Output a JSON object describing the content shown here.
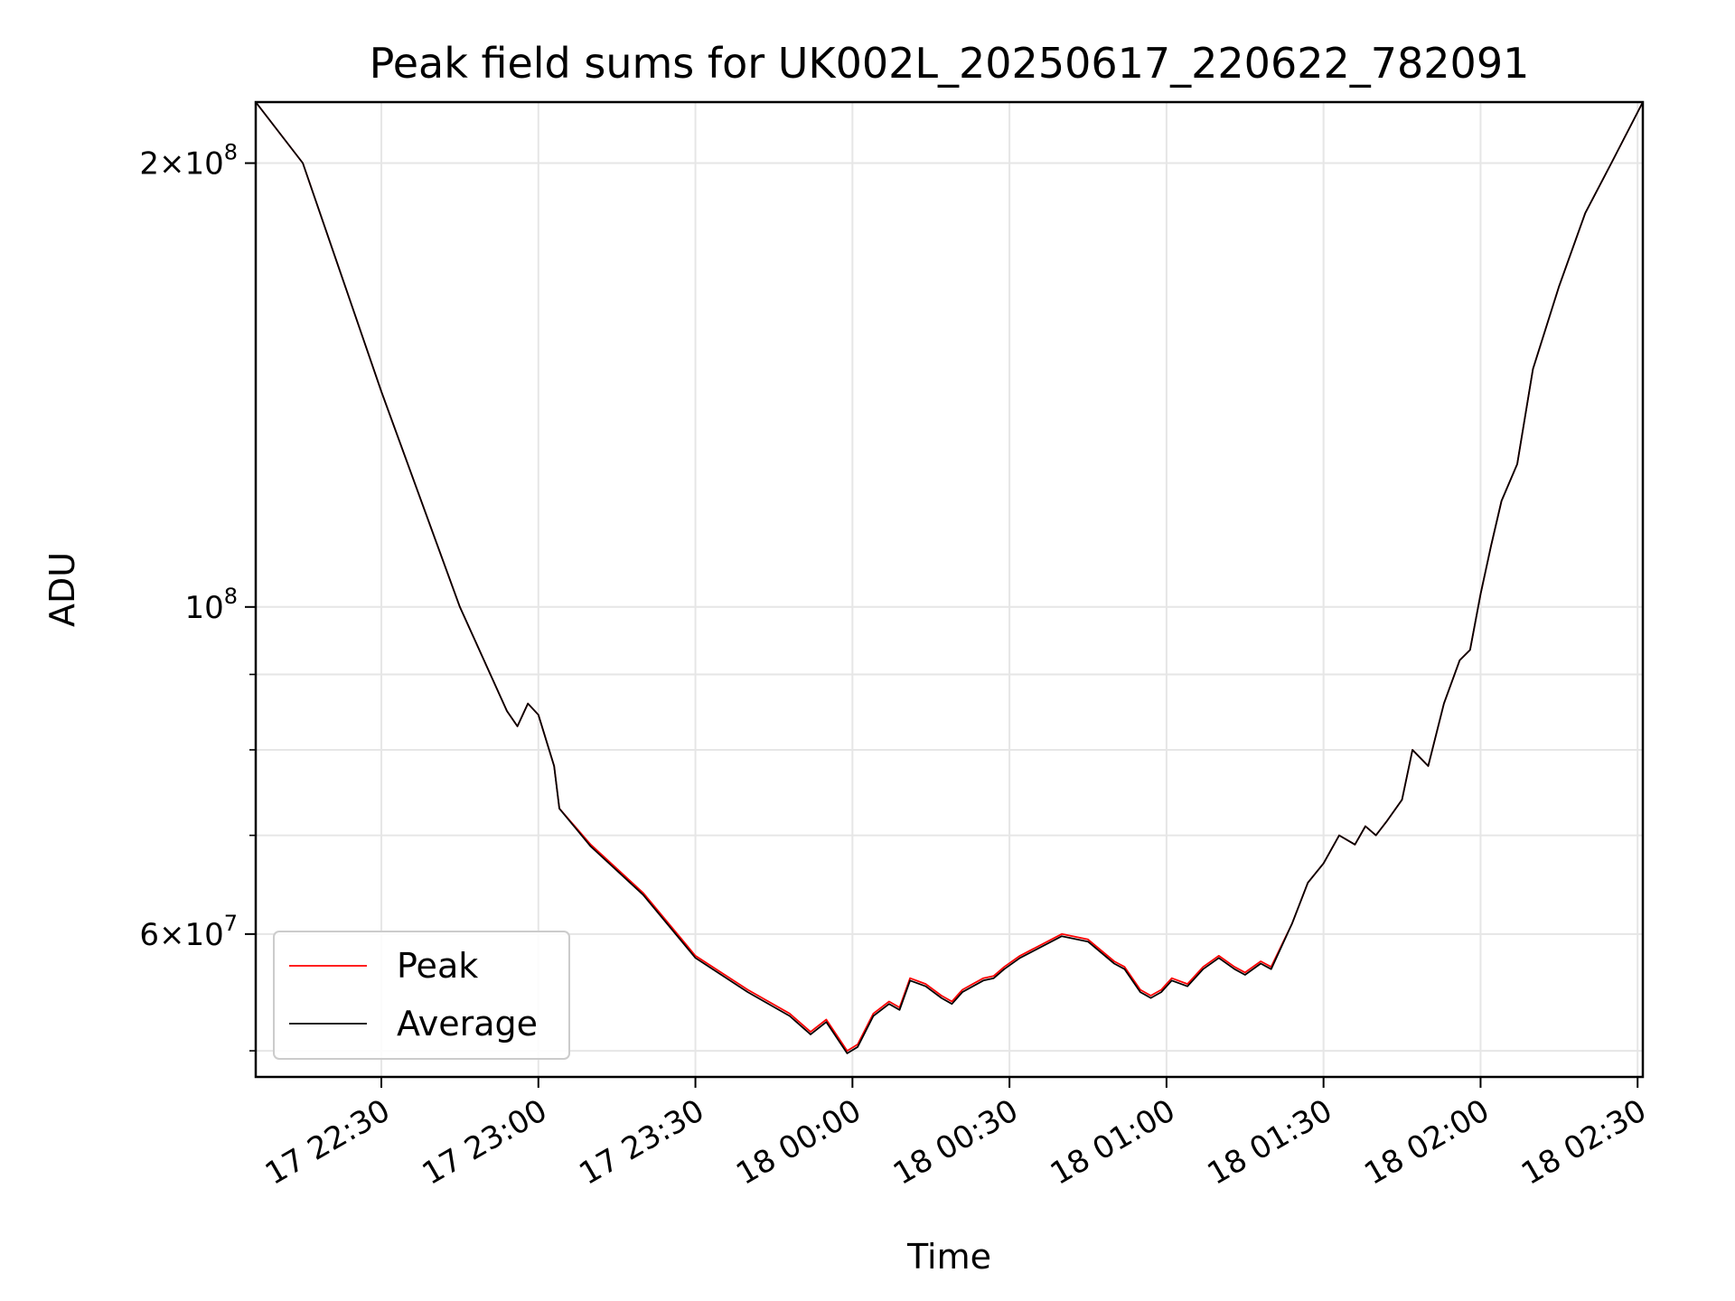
{
  "chart_data": {
    "type": "line",
    "title": "Peak field sums for UK002L_20250617_220622_782091",
    "xlabel": "Time",
    "ylabel": "ADU",
    "y_scale": "log",
    "ylim": [
      48000000,
      220000000
    ],
    "xlim": [
      "2025-06-17 22:06",
      "2025-06-18 02:31"
    ],
    "grid": true,
    "legend_position": "lower-left",
    "x_ticks": [
      "2025-06-17 22:30",
      "2025-06-17 23:00",
      "2025-06-17 23:30",
      "2025-06-18 00:00",
      "2025-06-18 00:30",
      "2025-06-18 01:00",
      "2025-06-18 01:30",
      "2025-06-18 02:00",
      "2025-06-18 02:30"
    ],
    "x_tick_labels": [
      "17 22:30",
      "17 23:00",
      "17 23:30",
      "18 00:00",
      "18 00:30",
      "18 01:00",
      "18 01:30",
      "18 02:00",
      "18 02:30"
    ],
    "y_major_ticks": [
      {
        "value": 200000000,
        "mantissa": "2",
        "exponent": "8"
      },
      {
        "value": 100000000,
        "mantissa": "",
        "exponent": "8"
      },
      {
        "value": 60000000,
        "mantissa": "6",
        "exponent": "7"
      }
    ],
    "y_minor_ticks": [
      50000000,
      70000000,
      80000000,
      90000000
    ],
    "y_tick_base": "10",
    "series": [
      {
        "name": "Peak",
        "color": "#ff0000",
        "x": [
          "2025-06-17 22:06",
          "2025-06-17 22:15",
          "2025-06-17 22:30",
          "2025-06-17 22:45",
          "2025-06-17 22:54",
          "2025-06-17 22:56",
          "2025-06-17 22:58",
          "2025-06-17 23:00",
          "2025-06-17 23:03",
          "2025-06-17 23:04",
          "2025-06-17 23:10",
          "2025-06-17 23:20",
          "2025-06-17 23:30",
          "2025-06-17 23:40",
          "2025-06-17 23:48",
          "2025-06-17 23:52",
          "2025-06-17 23:55",
          "2025-06-17 23:59",
          "2025-06-18 00:01",
          "2025-06-18 00:04",
          "2025-06-18 00:07",
          "2025-06-18 00:09",
          "2025-06-18 00:11",
          "2025-06-18 00:14",
          "2025-06-18 00:17",
          "2025-06-18 00:19",
          "2025-06-18 00:21",
          "2025-06-18 00:23",
          "2025-06-18 00:25",
          "2025-06-18 00:27",
          "2025-06-18 00:29",
          "2025-06-18 00:32",
          "2025-06-18 00:40",
          "2025-06-18 00:45",
          "2025-06-18 00:50",
          "2025-06-18 00:52",
          "2025-06-18 00:55",
          "2025-06-18 00:57",
          "2025-06-18 00:59",
          "2025-06-18 01:01",
          "2025-06-18 01:04",
          "2025-06-18 01:07",
          "2025-06-18 01:10",
          "2025-06-18 01:13",
          "2025-06-18 01:15",
          "2025-06-18 01:18",
          "2025-06-18 01:20",
          "2025-06-18 01:24",
          "2025-06-18 01:27",
          "2025-06-18 01:30",
          "2025-06-18 01:33",
          "2025-06-18 01:36",
          "2025-06-18 01:38",
          "2025-06-18 01:40",
          "2025-06-18 01:42",
          "2025-06-18 01:45",
          "2025-06-18 01:47",
          "2025-06-18 01:50",
          "2025-06-18 01:53",
          "2025-06-18 01:56",
          "2025-06-18 01:58",
          "2025-06-18 02:00",
          "2025-06-18 02:02",
          "2025-06-18 02:04",
          "2025-06-18 02:07",
          "2025-06-18 02:10",
          "2025-06-18 02:15",
          "2025-06-18 02:20",
          "2025-06-18 02:25",
          "2025-06-18 02:31"
        ],
        "y": [
          220000000,
          200000000,
          140000000,
          100000000,
          85000000,
          83000000,
          86000000,
          84500000,
          78000000,
          73000000,
          69000000,
          64000000,
          58000000,
          55000000,
          53000000,
          51500000,
          52500000,
          50000000,
          50500000,
          53000000,
          54000000,
          53500000,
          56000000,
          55500000,
          54500000,
          54000000,
          55000000,
          55500000,
          56000000,
          56200000,
          57000000,
          58000000,
          60000000,
          59500000,
          57500000,
          57000000,
          55000000,
          54500000,
          55000000,
          56000000,
          55500000,
          57000000,
          58000000,
          57000000,
          56500000,
          57500000,
          57000000,
          61000000,
          65000000,
          67000000,
          70000000,
          69000000,
          71000000,
          70000000,
          71500000,
          74000000,
          80000000,
          78000000,
          86000000,
          92000000,
          93500000,
          102000000,
          110000000,
          118000000,
          125000000,
          145000000,
          165000000,
          185000000,
          200000000,
          220000000
        ]
      },
      {
        "name": "Average",
        "color": "#000000",
        "x": [
          "2025-06-17 22:06",
          "2025-06-17 22:15",
          "2025-06-17 22:30",
          "2025-06-17 22:45",
          "2025-06-17 22:54",
          "2025-06-17 22:56",
          "2025-06-17 22:58",
          "2025-06-17 23:00",
          "2025-06-17 23:03",
          "2025-06-17 23:04",
          "2025-06-17 23:10",
          "2025-06-17 23:20",
          "2025-06-17 23:30",
          "2025-06-17 23:40",
          "2025-06-17 23:48",
          "2025-06-17 23:52",
          "2025-06-17 23:55",
          "2025-06-17 23:59",
          "2025-06-18 00:01",
          "2025-06-18 00:04",
          "2025-06-18 00:07",
          "2025-06-18 00:09",
          "2025-06-18 00:11",
          "2025-06-18 00:14",
          "2025-06-18 00:17",
          "2025-06-18 00:19",
          "2025-06-18 00:21",
          "2025-06-18 00:23",
          "2025-06-18 00:25",
          "2025-06-18 00:27",
          "2025-06-18 00:29",
          "2025-06-18 00:32",
          "2025-06-18 00:40",
          "2025-06-18 00:45",
          "2025-06-18 00:50",
          "2025-06-18 00:52",
          "2025-06-18 00:55",
          "2025-06-18 00:57",
          "2025-06-18 00:59",
          "2025-06-18 01:01",
          "2025-06-18 01:04",
          "2025-06-18 01:07",
          "2025-06-18 01:10",
          "2025-06-18 01:13",
          "2025-06-18 01:15",
          "2025-06-18 01:18",
          "2025-06-18 01:20",
          "2025-06-18 01:24",
          "2025-06-18 01:27",
          "2025-06-18 01:30",
          "2025-06-18 01:33",
          "2025-06-18 01:36",
          "2025-06-18 01:38",
          "2025-06-18 01:40",
          "2025-06-18 01:42",
          "2025-06-18 01:45",
          "2025-06-18 01:47",
          "2025-06-18 01:50",
          "2025-06-18 01:53",
          "2025-06-18 01:56",
          "2025-06-18 01:58",
          "2025-06-18 02:00",
          "2025-06-18 02:02",
          "2025-06-18 02:04",
          "2025-06-18 02:07",
          "2025-06-18 02:10",
          "2025-06-18 02:15",
          "2025-06-18 02:20",
          "2025-06-18 02:25",
          "2025-06-18 02:31"
        ],
        "y": [
          220000000,
          200000000,
          140000000,
          100000000,
          85000000,
          83000000,
          86000000,
          84500000,
          78000000,
          73000000,
          68800000,
          63800000,
          57800000,
          54800000,
          52800000,
          51300000,
          52300000,
          49800000,
          50300000,
          52800000,
          53800000,
          53300000,
          55800000,
          55300000,
          54300000,
          53800000,
          54800000,
          55300000,
          55800000,
          56000000,
          56800000,
          57800000,
          59800000,
          59300000,
          57300000,
          56800000,
          54800000,
          54300000,
          54800000,
          55800000,
          55300000,
          56800000,
          57800000,
          56800000,
          56300000,
          57300000,
          56800000,
          61000000,
          65000000,
          67000000,
          70000000,
          69000000,
          71000000,
          70000000,
          71500000,
          74000000,
          80000000,
          78000000,
          86000000,
          92000000,
          93500000,
          102000000,
          110000000,
          118000000,
          125000000,
          145000000,
          165000000,
          185000000,
          200000000,
          220000000
        ]
      }
    ]
  }
}
